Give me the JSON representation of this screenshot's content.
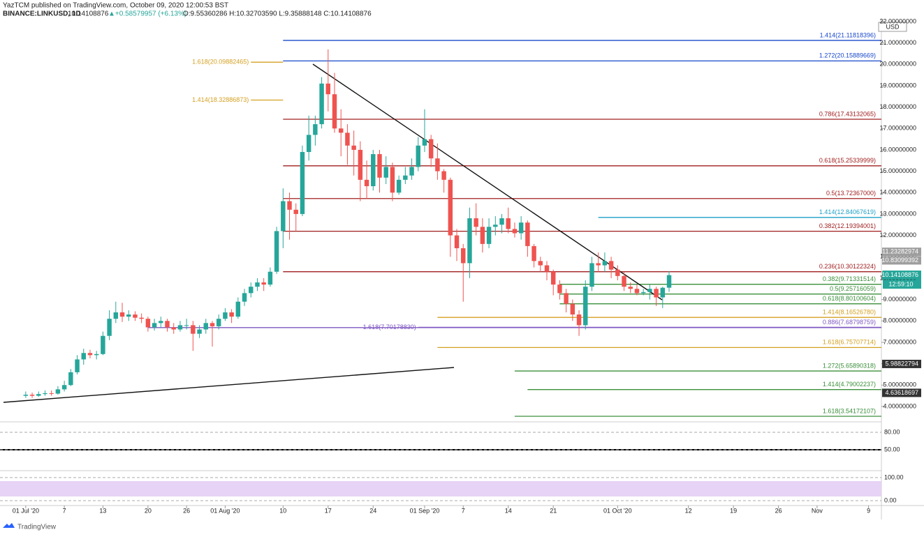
{
  "header": {
    "author": "YazTCM published on TradingView.com, October 09, 2020 12:00:53 BST",
    "symbol": "BINANCE:LINKUSD, 1D",
    "last": "10.14108876",
    "change": "▲+0.58579957 (+6.13%)",
    "ohlc": "O:9.55360286 H:10.32703590 L:9.35888148 C:10.14108876",
    "currency": "USD",
    "countdown": "12:59:10"
  },
  "footer": {
    "brand": "TradingView"
  },
  "chart_data": {
    "type": "candlestick",
    "up_color": "#26a69a",
    "down_color": "#ef5350",
    "xlim": [
      "2020-06-27",
      "2020-11-11"
    ],
    "ylim": [
      3.28,
      22.16
    ],
    "xticks": [
      {
        "value": "2020-07-01",
        "label": "01 Jul '20"
      },
      {
        "value": "2020-07-07",
        "label": "7"
      },
      {
        "value": "2020-07-13",
        "label": "13"
      },
      {
        "value": "2020-07-20",
        "label": "20"
      },
      {
        "value": "2020-07-26",
        "label": "26"
      },
      {
        "value": "2020-08-01",
        "label": "01 Aug '20"
      },
      {
        "value": "2020-08-10",
        "label": "10"
      },
      {
        "value": "2020-08-17",
        "label": "17"
      },
      {
        "value": "2020-08-24",
        "label": "24"
      },
      {
        "value": "2020-09-01",
        "label": "01 Sep '20"
      },
      {
        "value": "2020-09-07",
        "label": "7"
      },
      {
        "value": "2020-09-14",
        "label": "14"
      },
      {
        "value": "2020-09-21",
        "label": "21"
      },
      {
        "value": "2020-10-01",
        "label": "01 Oct '20"
      },
      {
        "value": "2020-10-12",
        "label": "12"
      },
      {
        "value": "2020-10-19",
        "label": "19"
      },
      {
        "value": "2020-10-26",
        "label": "26"
      },
      {
        "value": "2020-11-01",
        "label": "Nov"
      },
      {
        "value": "2020-11-09",
        "label": "9"
      }
    ],
    "yticks": [
      {
        "value": 22,
        "label": "22.00000000"
      },
      {
        "value": 21,
        "label": "21.00000000"
      },
      {
        "value": 20,
        "label": "20.00000000"
      },
      {
        "value": 19,
        "label": "19.00000000"
      },
      {
        "value": 18,
        "label": "18.00000000"
      },
      {
        "value": 17,
        "label": "17.00000000"
      },
      {
        "value": 16,
        "label": "16.00000000"
      },
      {
        "value": 15,
        "label": "15.00000000"
      },
      {
        "value": 14,
        "label": "14.00000000"
      },
      {
        "value": 13,
        "label": "13.00000000"
      },
      {
        "value": 12,
        "label": "12.00000000"
      },
      {
        "value": 11,
        "label": "11.00000000"
      },
      {
        "value": 10,
        "label": "10.00000000"
      },
      {
        "value": 9,
        "label": "9.00000000"
      },
      {
        "value": 8,
        "label": "8.00000000"
      },
      {
        "value": 7,
        "label": "7.00000000"
      },
      {
        "value": 6,
        "label": "6.00000000"
      },
      {
        "value": 5,
        "label": "5.00000000"
      },
      {
        "value": 4,
        "label": "4.00000000"
      }
    ],
    "x": [
      "2020-07-01",
      "2020-07-02",
      "2020-07-03",
      "2020-07-04",
      "2020-07-05",
      "2020-07-06",
      "2020-07-07",
      "2020-07-08",
      "2020-07-09",
      "2020-07-10",
      "2020-07-11",
      "2020-07-12",
      "2020-07-13",
      "2020-07-14",
      "2020-07-15",
      "2020-07-16",
      "2020-07-17",
      "2020-07-18",
      "2020-07-19",
      "2020-07-20",
      "2020-07-21",
      "2020-07-22",
      "2020-07-23",
      "2020-07-24",
      "2020-07-25",
      "2020-07-26",
      "2020-07-27",
      "2020-07-28",
      "2020-07-29",
      "2020-07-30",
      "2020-07-31",
      "2020-08-01",
      "2020-08-02",
      "2020-08-03",
      "2020-08-04",
      "2020-08-05",
      "2020-08-06",
      "2020-08-07",
      "2020-08-08",
      "2020-08-09",
      "2020-08-10",
      "2020-08-11",
      "2020-08-12",
      "2020-08-13",
      "2020-08-14",
      "2020-08-15",
      "2020-08-16",
      "2020-08-17",
      "2020-08-18",
      "2020-08-19",
      "2020-08-20",
      "2020-08-21",
      "2020-08-22",
      "2020-08-23",
      "2020-08-24",
      "2020-08-25",
      "2020-08-26",
      "2020-08-27",
      "2020-08-28",
      "2020-08-29",
      "2020-08-30",
      "2020-08-31",
      "2020-09-01",
      "2020-09-02",
      "2020-09-03",
      "2020-09-04",
      "2020-09-05",
      "2020-09-06",
      "2020-09-07",
      "2020-09-08",
      "2020-09-09",
      "2020-09-10",
      "2020-09-11",
      "2020-09-12",
      "2020-09-13",
      "2020-09-14",
      "2020-09-15",
      "2020-09-16",
      "2020-09-17",
      "2020-09-18",
      "2020-09-19",
      "2020-09-20",
      "2020-09-21",
      "2020-09-22",
      "2020-09-23",
      "2020-09-24",
      "2020-09-25",
      "2020-09-26",
      "2020-09-27",
      "2020-09-28",
      "2020-09-29",
      "2020-09-30",
      "2020-10-01",
      "2020-10-02",
      "2020-10-03",
      "2020-10-04",
      "2020-10-05",
      "2020-10-06",
      "2020-10-07",
      "2020-10-08",
      "2020-10-09"
    ],
    "ohlc": [
      [
        4.5,
        4.7,
        4.4,
        4.55
      ],
      [
        4.55,
        4.65,
        4.4,
        4.5
      ],
      [
        4.5,
        4.7,
        4.45,
        4.58
      ],
      [
        4.58,
        4.75,
        4.5,
        4.62
      ],
      [
        4.62,
        4.75,
        4.5,
        4.6
      ],
      [
        4.6,
        4.95,
        4.55,
        4.8
      ],
      [
        4.8,
        5.2,
        4.7,
        5.0
      ],
      [
        5.0,
        5.75,
        4.95,
        5.6
      ],
      [
        5.6,
        6.4,
        5.5,
        6.2
      ],
      [
        6.2,
        6.7,
        5.95,
        6.5
      ],
      [
        6.5,
        6.65,
        6.25,
        6.4
      ],
      [
        6.4,
        6.6,
        6.2,
        6.45
      ],
      [
        6.45,
        7.5,
        6.4,
        7.3
      ],
      [
        7.3,
        8.5,
        7.1,
        8.1
      ],
      [
        8.1,
        8.9,
        7.9,
        8.4
      ],
      [
        8.4,
        8.85,
        7.95,
        8.2
      ],
      [
        8.2,
        8.5,
        8.0,
        8.3
      ],
      [
        8.3,
        8.45,
        8.0,
        8.15
      ],
      [
        8.15,
        8.35,
        7.9,
        8.1
      ],
      [
        8.1,
        8.2,
        7.5,
        7.7
      ],
      [
        7.7,
        8.1,
        7.55,
        7.9
      ],
      [
        7.9,
        8.2,
        7.7,
        8.0
      ],
      [
        8.0,
        8.1,
        7.5,
        7.7
      ],
      [
        7.7,
        7.9,
        7.4,
        7.6
      ],
      [
        7.6,
        8.0,
        7.5,
        7.8
      ],
      [
        7.8,
        8.1,
        7.6,
        7.8
      ],
      [
        7.8,
        8.0,
        6.6,
        7.4
      ],
      [
        7.4,
        7.8,
        7.2,
        7.6
      ],
      [
        7.6,
        8.1,
        7.4,
        7.9
      ],
      [
        7.9,
        8.0,
        6.8,
        7.75
      ],
      [
        7.75,
        8.3,
        7.6,
        8.1
      ],
      [
        8.1,
        8.6,
        8.0,
        8.4
      ],
      [
        8.4,
        8.55,
        7.9,
        8.2
      ],
      [
        8.2,
        9.1,
        8.1,
        8.9
      ],
      [
        8.9,
        9.5,
        8.7,
        9.3
      ],
      [
        9.3,
        9.8,
        9.1,
        9.6
      ],
      [
        9.6,
        10.0,
        9.4,
        9.8
      ],
      [
        9.8,
        10.0,
        9.4,
        9.7
      ],
      [
        9.7,
        10.5,
        9.6,
        10.3
      ],
      [
        10.3,
        12.4,
        10.2,
        12.2
      ],
      [
        12.2,
        14.2,
        11.4,
        13.6
      ],
      [
        13.6,
        14.0,
        11.8,
        13.2
      ],
      [
        13.2,
        13.5,
        12.2,
        13.0
      ],
      [
        13.0,
        16.2,
        12.9,
        15.9
      ],
      [
        15.9,
        17.6,
        15.5,
        16.7
      ],
      [
        16.7,
        17.6,
        16.2,
        17.2
      ],
      [
        17.2,
        19.4,
        17.0,
        19.1
      ],
      [
        19.1,
        20.7,
        17.8,
        18.6
      ],
      [
        18.6,
        19.6,
        16.8,
        17.0
      ],
      [
        17.0,
        17.9,
        15.7,
        16.8
      ],
      [
        16.8,
        17.2,
        15.3,
        16.2
      ],
      [
        16.2,
        16.9,
        14.8,
        16.0
      ],
      [
        16.0,
        16.4,
        13.6,
        14.6
      ],
      [
        14.6,
        15.5,
        13.7,
        14.3
      ],
      [
        14.3,
        16.0,
        14.1,
        15.8
      ],
      [
        15.8,
        16.0,
        14.0,
        14.7
      ],
      [
        14.7,
        15.7,
        14.4,
        15.2
      ],
      [
        15.2,
        15.4,
        13.6,
        14.0
      ],
      [
        14.0,
        14.8,
        13.9,
        14.6
      ],
      [
        14.6,
        15.2,
        14.4,
        14.8
      ],
      [
        14.8,
        15.6,
        14.6,
        15.2
      ],
      [
        15.2,
        16.6,
        15.0,
        16.2
      ],
      [
        16.2,
        17.9,
        15.9,
        16.5
      ],
      [
        16.5,
        16.7,
        15.2,
        15.6
      ],
      [
        15.6,
        16.3,
        14.6,
        15.0
      ],
      [
        15.0,
        15.1,
        14.0,
        14.6
      ],
      [
        14.6,
        14.7,
        11.0,
        12.0
      ],
      [
        12.0,
        12.3,
        10.8,
        11.4
      ],
      [
        11.4,
        11.6,
        8.9,
        10.7
      ],
      [
        10.7,
        13.3,
        10.0,
        12.8
      ],
      [
        12.8,
        13.5,
        12.0,
        12.4
      ],
      [
        12.4,
        12.8,
        11.2,
        11.6
      ],
      [
        11.6,
        12.8,
        11.4,
        12.4
      ],
      [
        12.4,
        12.9,
        12.0,
        12.5
      ],
      [
        12.5,
        13.0,
        12.1,
        12.8
      ],
      [
        12.8,
        13.3,
        12.1,
        12.3
      ],
      [
        12.3,
        12.6,
        11.9,
        12.1
      ],
      [
        12.1,
        12.9,
        11.8,
        12.6
      ],
      [
        12.6,
        12.7,
        11.0,
        11.5
      ],
      [
        11.5,
        11.6,
        10.5,
        10.8
      ],
      [
        10.8,
        11.0,
        10.3,
        10.6
      ],
      [
        10.6,
        10.8,
        9.9,
        10.3
      ],
      [
        10.3,
        10.4,
        9.2,
        9.7
      ],
      [
        9.7,
        9.9,
        9.0,
        9.3
      ],
      [
        9.3,
        9.5,
        8.4,
        8.8
      ],
      [
        8.8,
        9.0,
        8.0,
        8.3
      ],
      [
        8.3,
        8.5,
        7.3,
        7.8
      ],
      [
        7.8,
        9.9,
        7.6,
        9.6
      ],
      [
        9.6,
        11.0,
        9.4,
        10.7
      ],
      [
        10.7,
        11.2,
        10.3,
        10.6
      ],
      [
        10.6,
        11.2,
        10.3,
        10.8
      ],
      [
        10.8,
        11.0,
        10.0,
        10.4
      ],
      [
        10.4,
        10.6,
        9.9,
        10.1
      ],
      [
        10.1,
        10.3,
        9.4,
        9.6
      ],
      [
        9.6,
        9.8,
        9.3,
        9.5
      ],
      [
        9.5,
        9.7,
        9.2,
        9.3
      ],
      [
        9.3,
        9.5,
        9.2,
        9.35
      ],
      [
        9.35,
        9.7,
        9.0,
        9.5
      ],
      [
        9.5,
        9.6,
        8.7,
        9.1
      ],
      [
        9.1,
        9.6,
        8.6,
        9.55
      ],
      [
        9.55360286,
        10.3270359,
        9.35888148,
        10.14108876
      ]
    ],
    "levels": [
      {
        "label": "1.414(21.11818396)",
        "value": 21.11818396,
        "color": "#1848cc",
        "start": "2020-08-10"
      },
      {
        "label": "1.272(20.15889669)",
        "value": 20.15889669,
        "color": "#1848cc",
        "start": "2020-08-10"
      },
      {
        "label": "1.618(20.09882465)",
        "value": 20.09882465,
        "color": "#d4a020",
        "start": "2020-08-05",
        "end": "2020-08-10"
      },
      {
        "label": "1.414(18.32886873)",
        "value": 18.32886873,
        "color": "#d4a020",
        "start": "2020-08-05",
        "end": "2020-08-10"
      },
      {
        "label": "0.786(17.43132065)",
        "value": 17.43132065,
        "color": "#a01e1e",
        "start": "2020-08-10"
      },
      {
        "label": "0.618(15.25339999)",
        "value": 15.25339999,
        "color": "#a01e1e",
        "start": "2020-08-10"
      },
      {
        "label": "0.5(13.72367000)",
        "value": 13.72367,
        "color": "#a01e1e",
        "start": "2020-08-10"
      },
      {
        "label": "1.414(12.84067619)",
        "value": 12.84067619,
        "color": "#1ea0c8",
        "start": "2020-09-28"
      },
      {
        "label": "0.382(12.19394001)",
        "value": 12.19394001,
        "color": "#a01e1e",
        "start": "2020-08-10"
      },
      {
        "label": "0.236(10.30122324)",
        "value": 10.30122324,
        "color": "#a01e1e",
        "start": "2020-08-10"
      },
      {
        "label": "0.382(9.71331514)",
        "value": 9.71331514,
        "color": "#3a8f3a",
        "start": "2020-09-22"
      },
      {
        "label": "0.5(9.25716059)",
        "value": 9.25716059,
        "color": "#3a8f3a",
        "start": "2020-09-22"
      },
      {
        "label": "0.618(8.80100604)",
        "value": 8.80100604,
        "color": "#3a8f3a",
        "start": "2020-09-22"
      },
      {
        "label": "1.414(8.16526780)",
        "value": 8.1652678,
        "color": "#d4a020",
        "start": "2020-09-03"
      },
      {
        "label": "1.618(7.70178830)",
        "value": 7.7017883,
        "color": "#7e57c2",
        "start": "2020-08-31",
        "end": "2020-11-11"
      },
      {
        "label": "0.886(7.68798759)",
        "value": 7.68798759,
        "color": "#7e57c2",
        "start": "2020-07-20"
      },
      {
        "label": "1.618(6.75707714)",
        "value": 6.75707714,
        "color": "#d4a020",
        "start": "2020-09-03"
      },
      {
        "label": "1.272(5.65890318)",
        "value": 5.65890318,
        "color": "#3a8f3a",
        "start": "2020-09-15"
      },
      {
        "label": "1.414(4.79002237)",
        "value": 4.79002237,
        "color": "#3a8f3a",
        "start": "2020-09-17"
      },
      {
        "label": "1.618(3.54172107)",
        "value": 3.54172107,
        "color": "#3a8f3a",
        "start": "2020-09-15"
      }
    ],
    "price_tags": [
      {
        "value": 11.23282974,
        "color": "#9e9e9e"
      },
      {
        "value": 10.83099392,
        "color": "#9e9e9e"
      },
      {
        "value": 10.14108876,
        "color": "#26a69a"
      },
      {
        "value": 5.98822794,
        "color": "#333333"
      },
      {
        "value": 4.63618697,
        "color": "#333333"
      }
    ],
    "rsi": {
      "ylim": [
        14,
        98
      ],
      "yticks": [
        {
          "value": 80,
          "label": "80.00"
        },
        {
          "value": 50,
          "label": "50.00"
        }
      ]
    },
    "stoch": {
      "ylim": [
        -21,
        130
      ],
      "yticks": [
        {
          "value": 100,
          "label": "100.00"
        },
        {
          "value": 0,
          "label": "0.00"
        }
      ]
    }
  }
}
